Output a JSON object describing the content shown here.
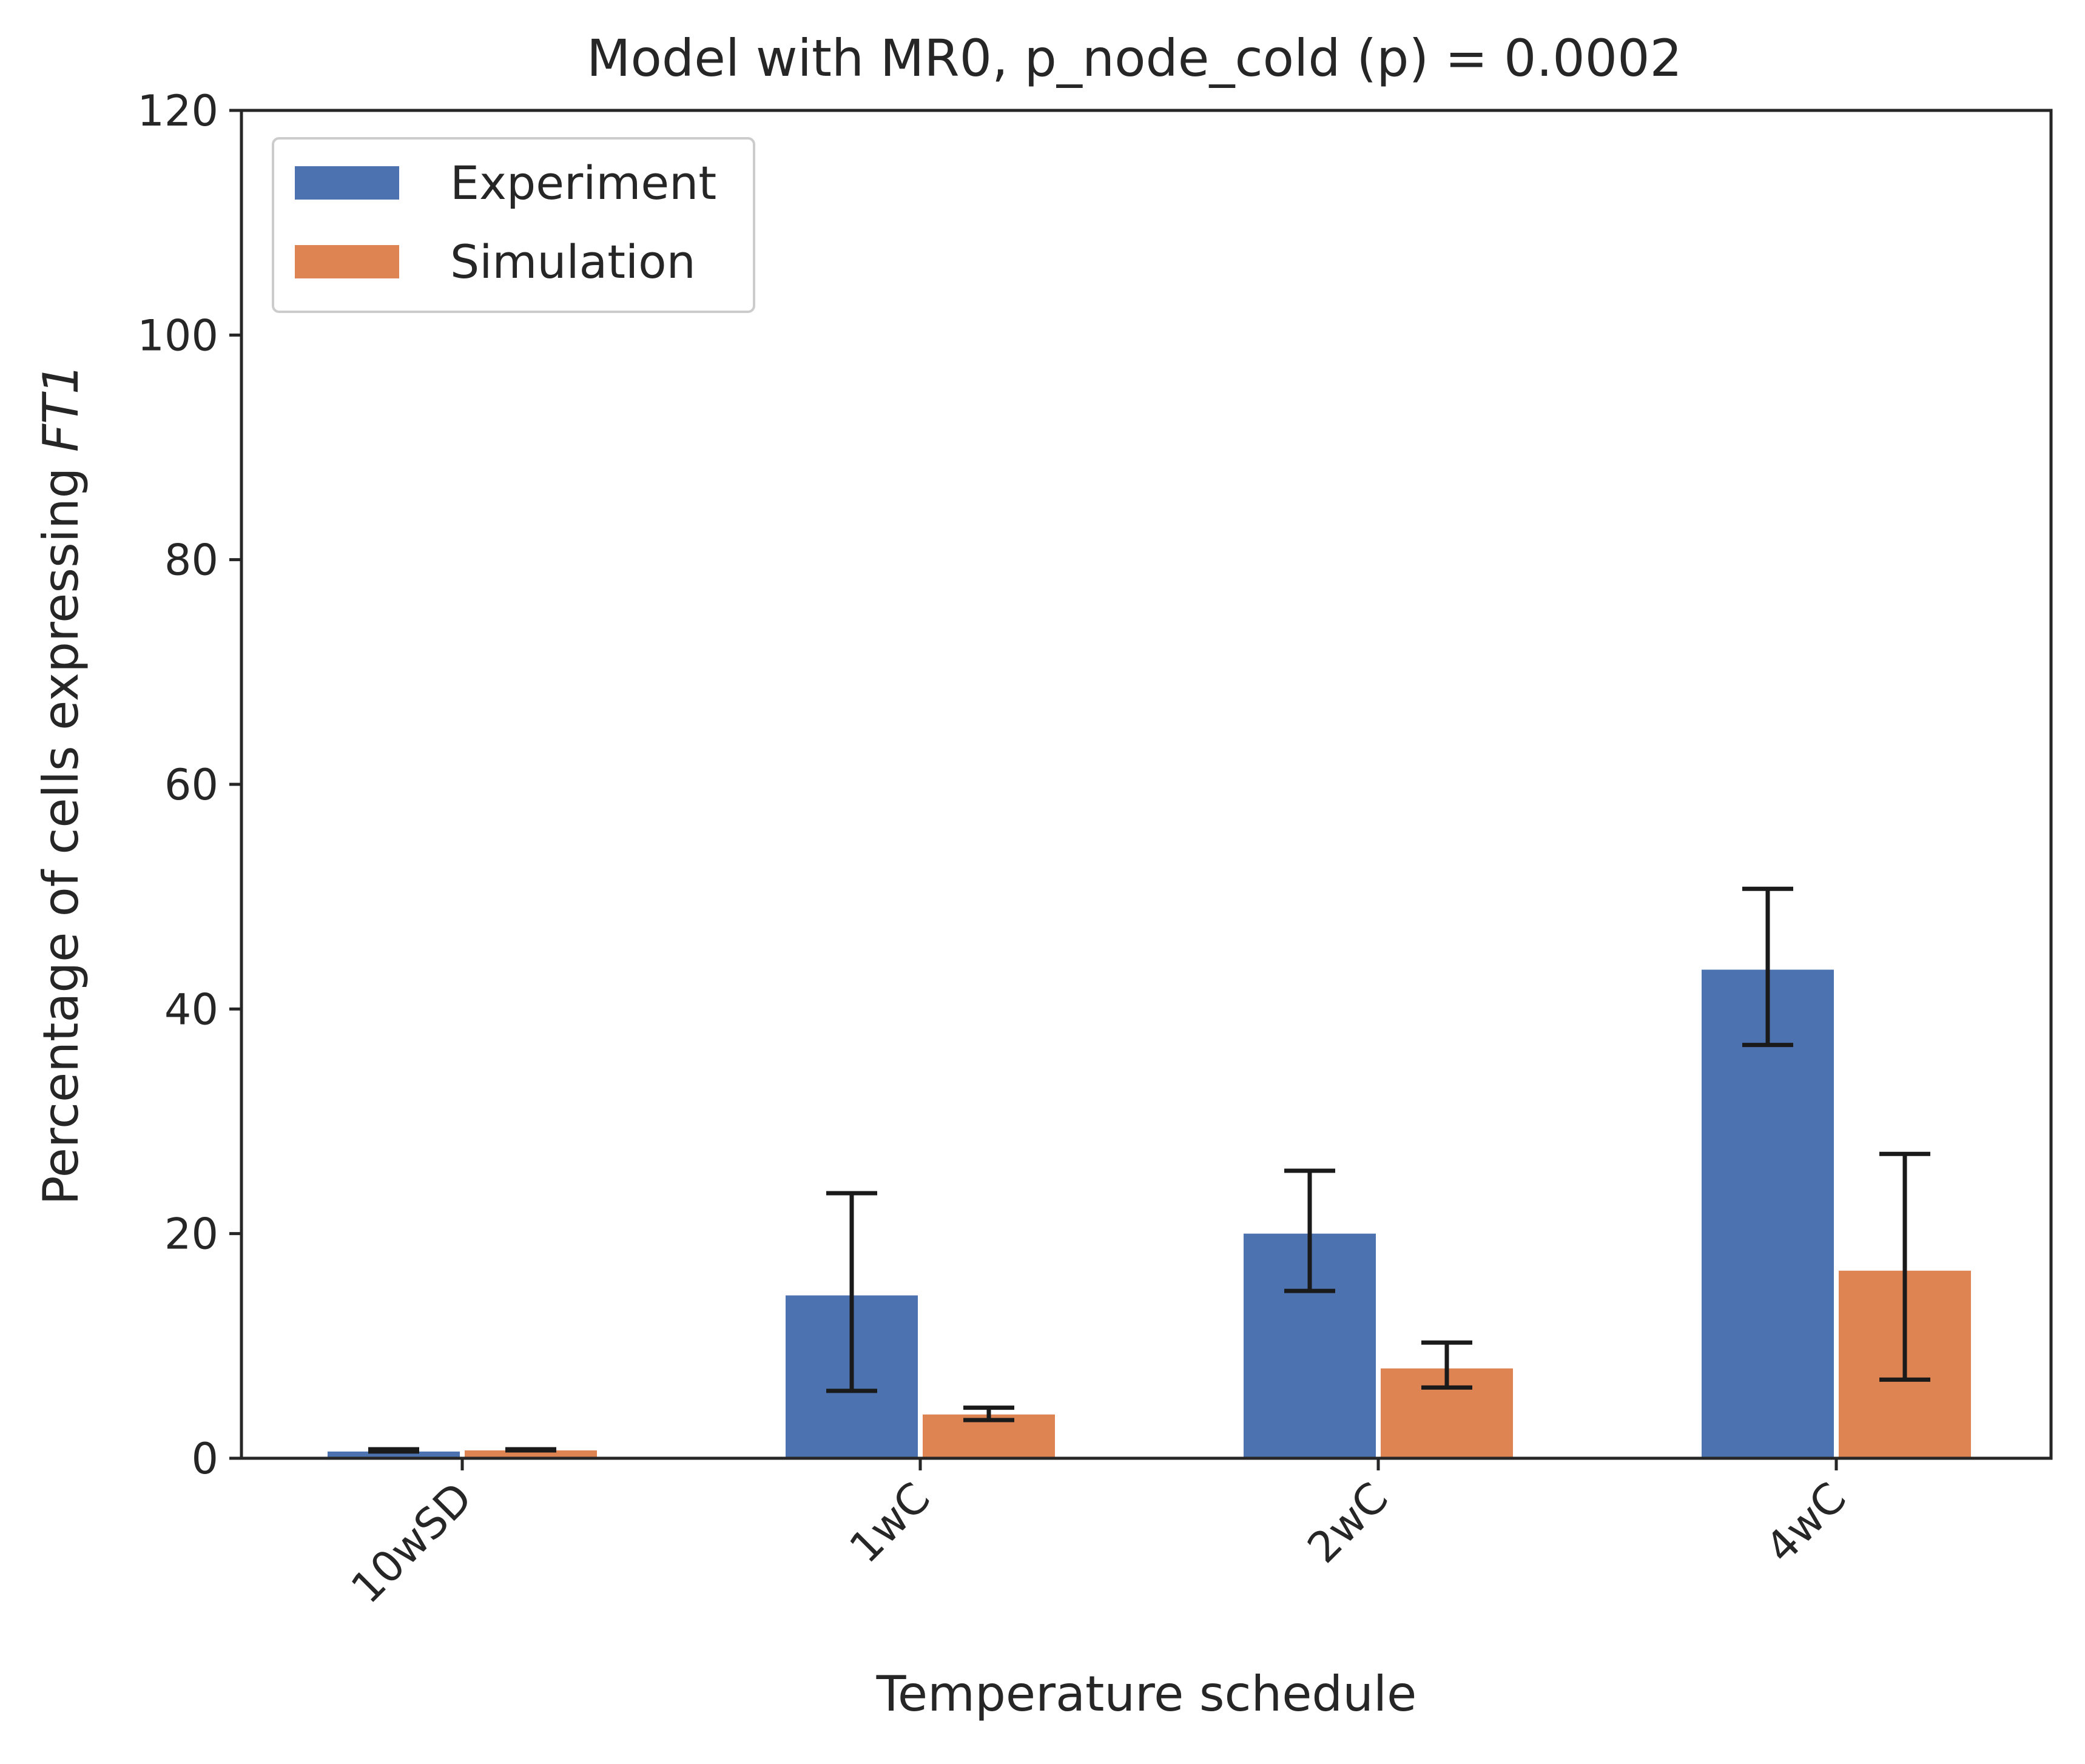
{
  "chart_data": {
    "type": "bar",
    "title": "Model with MR0, p_node_cold (p) = 0.0002",
    "xlabel": "Temperature schedule",
    "ylabel_prefix": "Percentage of cells expressing ",
    "ylabel_gene": "FT1",
    "categories": [
      "10wSD",
      "1wC",
      "2wC",
      "4wC"
    ],
    "ylim": [
      0,
      120
    ],
    "yticks": [
      0,
      20,
      40,
      60,
      80,
      100,
      120
    ],
    "legend_position": "top-left",
    "grid": false,
    "series": [
      {
        "name": "Experiment",
        "color": "#4c72b0",
        "values": [
          0.6,
          14.5,
          20.0,
          43.5
        ],
        "err_low": [
          0.6,
          6.0,
          14.9,
          36.8
        ],
        "err_high": [
          0.8,
          23.6,
          25.6,
          50.7
        ]
      },
      {
        "name": "Simulation",
        "color": "#dd8452",
        "values": [
          0.7,
          3.9,
          8.0,
          16.7
        ],
        "err_low": [
          0.7,
          3.4,
          6.3,
          7.0
        ],
        "err_high": [
          0.8,
          4.5,
          10.3,
          27.1
        ]
      }
    ]
  }
}
